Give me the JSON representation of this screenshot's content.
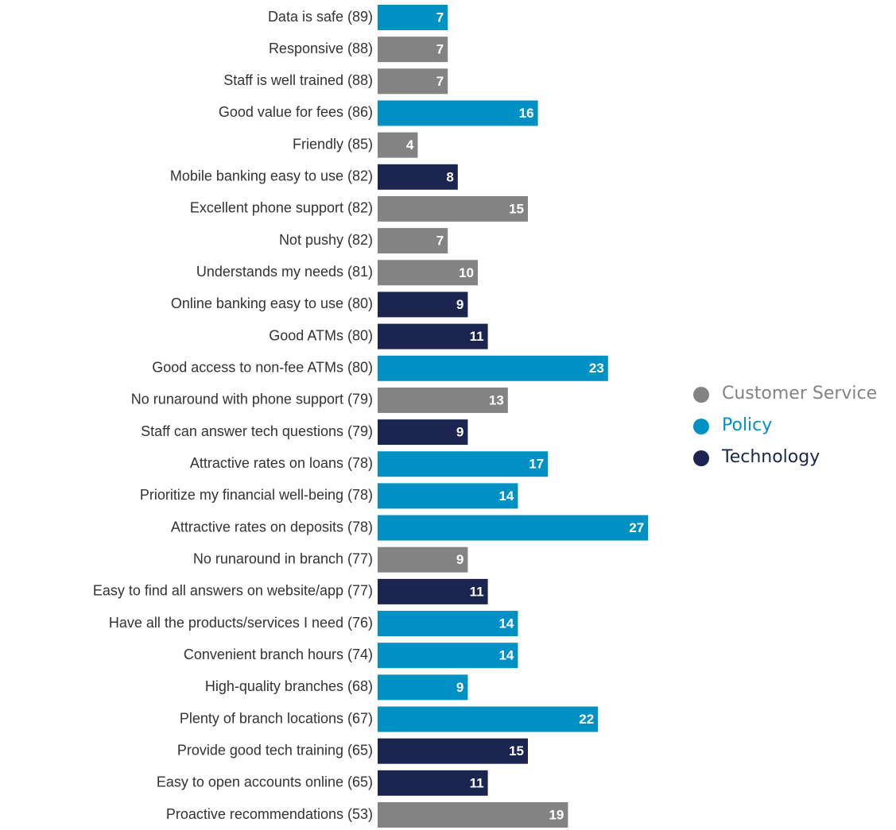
{
  "chart_data": {
    "type": "bar",
    "orientation": "horizontal",
    "categories": [
      "Data is safe (89)",
      "Responsive (88)",
      "Staff is well trained (88)",
      "Good value for fees (86)",
      "Friendly (85)",
      "Mobile banking easy to use (82)",
      "Excellent phone support (82)",
      "Not pushy (82)",
      "Understands my needs (81)",
      "Online banking easy to use (80)",
      "Good ATMs (80)",
      "Good access to non-fee ATMs (80)",
      "No runaround with phone support (79)",
      "Staff can answer tech questions (79)",
      "Attractive rates on loans (78)",
      "Prioritize my financial well-being (78)",
      "Attractive rates on deposits (78)",
      "No runaround in branch (77)",
      "Easy to find all answers on website/app (77)",
      "Have all the products/services I need (76)",
      "Convenient branch hours (74)",
      "High-quality branches (68)",
      "Plenty of branch locations (67)",
      "Provide good tech training (65)",
      "Easy to open accounts online (65)",
      "Proactive recommendations (53)"
    ],
    "series": [
      {
        "name": "Customer Service",
        "color": "#838383",
        "values": [
          null,
          7,
          7,
          null,
          4,
          null,
          15,
          7,
          10,
          null,
          null,
          null,
          13,
          null,
          null,
          null,
          null,
          9,
          null,
          null,
          null,
          null,
          null,
          null,
          null,
          19
        ]
      },
      {
        "name": "Policy",
        "color": "#0091c4",
        "values": [
          7,
          null,
          null,
          16,
          null,
          null,
          null,
          null,
          null,
          null,
          null,
          23,
          null,
          null,
          17,
          14,
          27,
          null,
          null,
          14,
          14,
          9,
          22,
          null,
          null,
          null
        ]
      },
      {
        "name": "Technology",
        "color": "#1c2550",
        "values": [
          null,
          null,
          null,
          null,
          null,
          8,
          null,
          null,
          null,
          9,
          11,
          null,
          null,
          9,
          null,
          null,
          null,
          null,
          11,
          null,
          null,
          null,
          null,
          15,
          11,
          null
        ]
      }
    ],
    "legend": "right"
  }
}
